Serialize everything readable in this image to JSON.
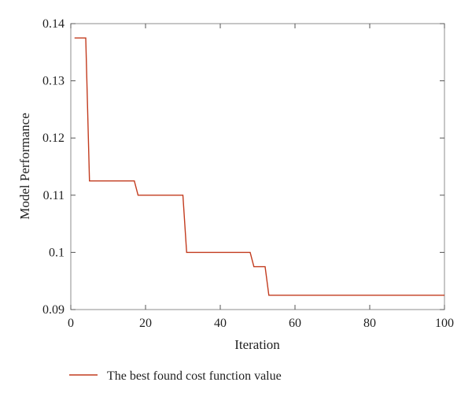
{
  "chart_data": {
    "type": "line",
    "xlabel": "Iteration",
    "ylabel": "Model Performance",
    "xlim": [
      0,
      100
    ],
    "ylim": [
      0.09,
      0.14
    ],
    "x_ticks": [
      0,
      20,
      40,
      60,
      80,
      100
    ],
    "x_tick_labels": [
      "0",
      "20",
      "40",
      "60",
      "80",
      "100"
    ],
    "y_ticks": [
      0.09,
      0.1,
      0.11,
      0.12,
      0.13,
      0.14
    ],
    "y_tick_labels": [
      "0.09",
      "0.1",
      "0.11",
      "0.12",
      "0.13",
      "0.14"
    ],
    "grid": false,
    "legend_position": "bottom",
    "series": [
      {
        "name": "The best found cost function value",
        "color": "#c23b1e",
        "x": [
          1,
          4,
          5,
          17,
          18,
          30,
          31,
          48,
          49,
          52,
          53,
          100
        ],
        "y": [
          0.1375,
          0.1375,
          0.1125,
          0.1125,
          0.11,
          0.11,
          0.1,
          0.1,
          0.0975,
          0.0975,
          0.0925,
          0.0925
        ]
      }
    ]
  }
}
